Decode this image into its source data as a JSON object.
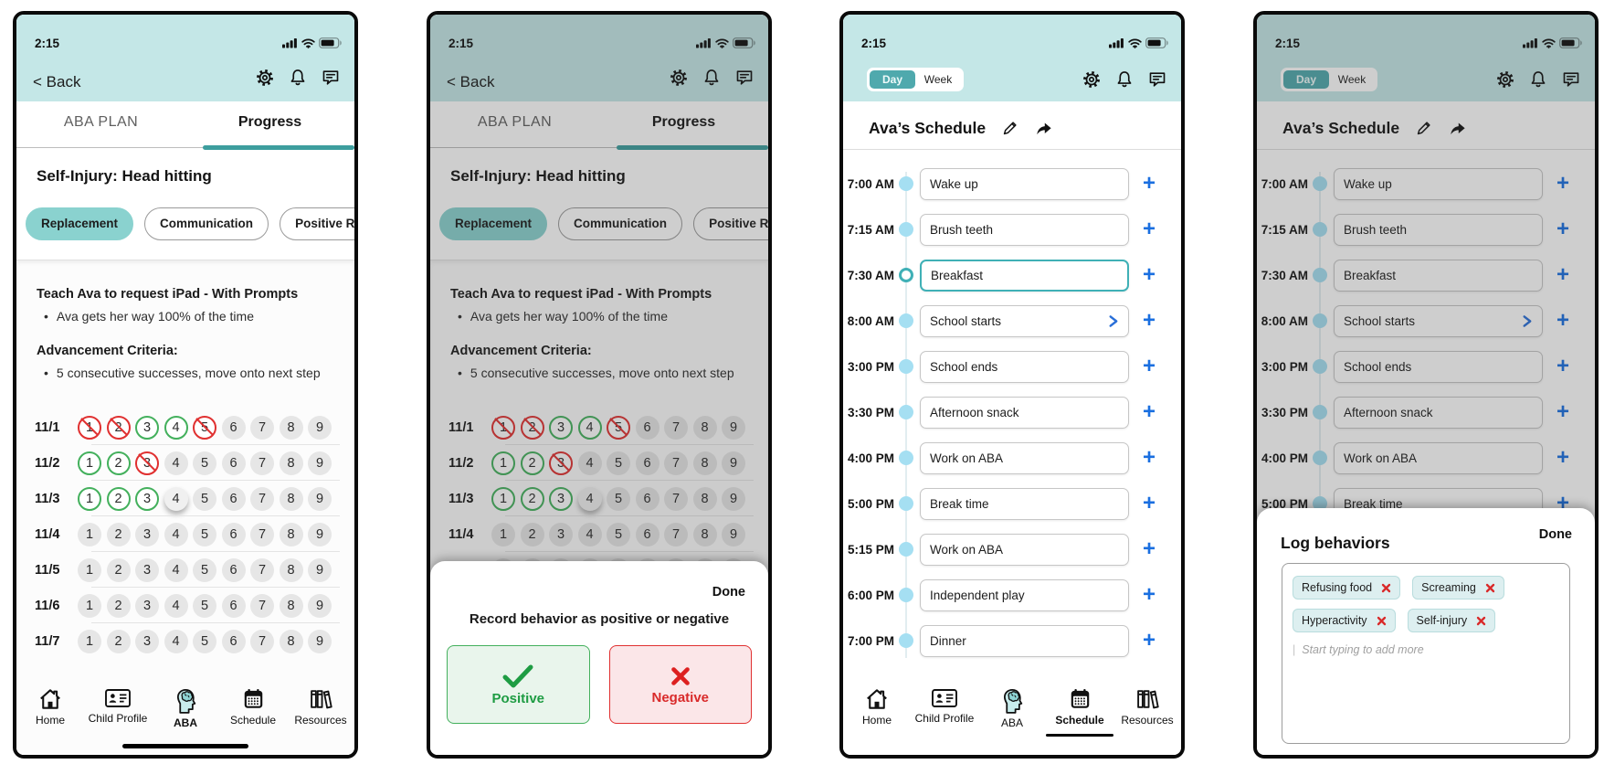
{
  "colors": {
    "header_teal": "#c4e7e7",
    "accent_teal": "#4fa9ad",
    "accent_dark_teal": "#3d9e9e",
    "chip_teal": "#8ad2cf",
    "dot_blue": "#a5dff2",
    "edit_teal": "#3fb0b6",
    "link_blue": "#1a6fe0",
    "positive_green": "#43b05c",
    "negative_red": "#e03030"
  },
  "status": {
    "time": "2:15"
  },
  "glyphs": {
    "plus": "+",
    "bullet": "•",
    "cursor": "|"
  },
  "aba": {
    "back_label": "< Back",
    "tabs": {
      "left": "ABA PLAN",
      "right": "Progress"
    },
    "title": "Self-Injury: Head hitting",
    "chips": [
      {
        "label": "Replacement",
        "selected": true
      },
      {
        "label": "Communication",
        "selected": false
      },
      {
        "label": "Positive R",
        "selected": false
      }
    ],
    "goal_title": "Teach Ava to request iPad - With Prompts",
    "goal_bullet": "Ava gets her way 100% of the time",
    "criteria_title": "Advancement Criteria:",
    "criteria_bullet": "5 consecutive successes, move onto next step",
    "grid": {
      "cols": [
        "1",
        "2",
        "3",
        "4",
        "5",
        "6",
        "7",
        "8",
        "9"
      ],
      "rows": [
        {
          "date": "11/1",
          "marks": [
            "neg",
            "neg",
            "pos",
            "pos",
            "neg",
            "",
            "",
            "",
            ""
          ]
        },
        {
          "date": "11/2",
          "marks": [
            "pos",
            "pos",
            "neg",
            "",
            "",
            "",
            "",
            "",
            ""
          ]
        },
        {
          "date": "11/3",
          "marks": [
            "pos",
            "pos",
            "pos",
            "press",
            "",
            "",
            "",
            "",
            ""
          ]
        },
        {
          "date": "11/4",
          "marks": [
            "",
            "",
            "",
            "",
            "",
            "",
            "",
            "",
            ""
          ]
        },
        {
          "date": "11/5",
          "marks": [
            "",
            "",
            "",
            "",
            "",
            "",
            "",
            "",
            ""
          ]
        },
        {
          "date": "11/6",
          "marks": [
            "",
            "",
            "",
            "",
            "",
            "",
            "",
            "",
            ""
          ]
        },
        {
          "date": "11/7",
          "marks": [
            "",
            "",
            "",
            "",
            "",
            "",
            "",
            "",
            ""
          ]
        }
      ]
    }
  },
  "record_sheet": {
    "done_label": "Done",
    "prompt": "Record behavior as positive or negative",
    "positive_label": "Positive",
    "negative_label": "Negative"
  },
  "schedule": {
    "toggle": {
      "day": "Day",
      "week": "Week",
      "active": "Day"
    },
    "title": "Ava’s Schedule",
    "rows": [
      {
        "time": "7:00 AM",
        "activity": "Wake up"
      },
      {
        "time": "7:15 AM",
        "activity": "Brush teeth"
      },
      {
        "time": "7:30 AM",
        "activity": "Breakfast",
        "state": "editing"
      },
      {
        "time": "8:00 AM",
        "activity": "School starts",
        "chevron": true
      },
      {
        "time": "3:00 PM",
        "activity": "School ends"
      },
      {
        "time": "3:30 PM",
        "activity": "Afternoon snack"
      },
      {
        "time": "4:00 PM",
        "activity": "Work on ABA"
      },
      {
        "time": "5:00 PM",
        "activity": "Break time"
      },
      {
        "time": "5:15 PM",
        "activity": "Work on ABA"
      },
      {
        "time": "6:00 PM",
        "activity": "Independent play"
      },
      {
        "time": "7:00 PM",
        "activity": "Dinner"
      }
    ]
  },
  "log_sheet": {
    "done_label": "Done",
    "title": "Log behaviors",
    "behaviors": [
      "Refusing food",
      "Screaming",
      "Hyperactivity",
      "Self-injury"
    ],
    "placeholder": "Start typing to add more"
  },
  "nav": {
    "items": [
      {
        "label": "Home",
        "icon": "home-icon"
      },
      {
        "label": "Child Profile",
        "icon": "id-card-icon"
      },
      {
        "label": "ABA",
        "icon": "brain-head-icon"
      },
      {
        "label": "Schedule",
        "icon": "calendar-icon"
      },
      {
        "label": "Resources",
        "icon": "books-icon"
      }
    ]
  }
}
